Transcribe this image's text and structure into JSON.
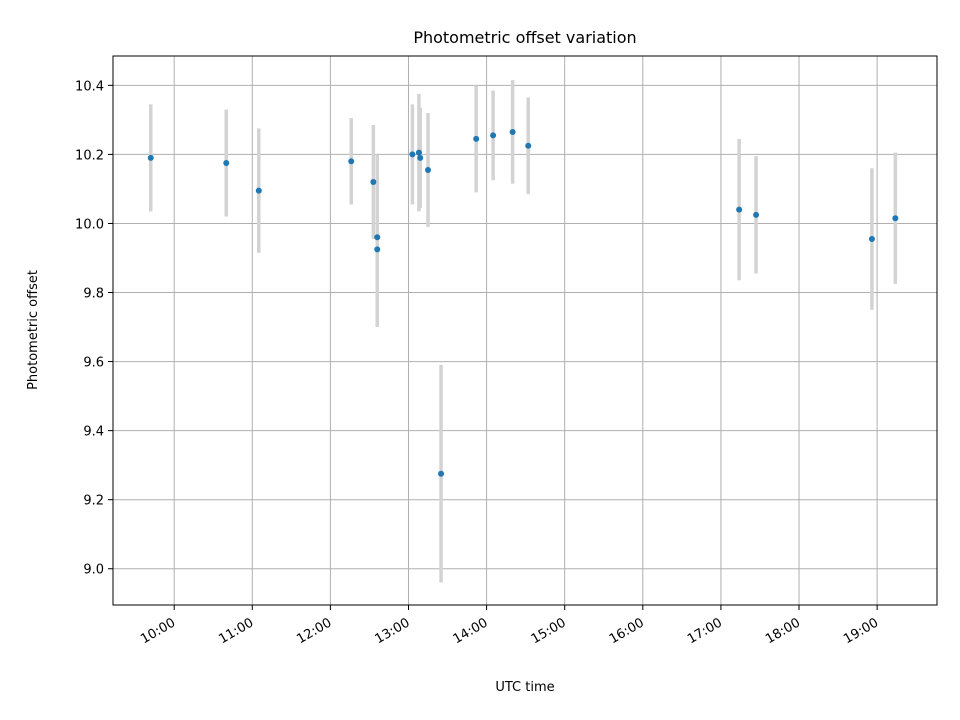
{
  "chart_data": {
    "type": "scatter",
    "title": "Photometric offset variation",
    "xlabel": "UTC time",
    "ylabel": "Photometric offset",
    "x_ticks": [
      "10:00",
      "11:00",
      "12:00",
      "13:00",
      "14:00",
      "15:00",
      "16:00",
      "17:00",
      "18:00",
      "19:00"
    ],
    "xlim": [
      "09:13",
      "19:46"
    ],
    "y_ticks": [
      "9.0",
      "9.2",
      "9.4",
      "9.6",
      "9.8",
      "10.0",
      "10.2",
      "10.4"
    ],
    "ylim": [
      8.895,
      10.485
    ],
    "grid": true,
    "colors": {
      "marker": "#1f77b4",
      "errorbar": "#d3d3d3",
      "grid": "#b0b0b0"
    },
    "series": [
      {
        "points": [
          {
            "x": "09:42",
            "y": 10.19,
            "yerr": 0.155
          },
          {
            "x": "10:40",
            "y": 10.175,
            "yerr": 0.155
          },
          {
            "x": "11:05",
            "y": 10.095,
            "yerr": 0.18
          },
          {
            "x": "12:16",
            "y": 10.18,
            "yerr": 0.125
          },
          {
            "x": "12:33",
            "y": 10.12,
            "yerr": 0.165
          },
          {
            "x": "12:36",
            "y": 9.96,
            "yerr": 0.24
          },
          {
            "x": "12:36",
            "y": 9.925,
            "yerr": 0.225
          },
          {
            "x": "13:03",
            "y": 10.2,
            "yerr": 0.145
          },
          {
            "x": "13:08",
            "y": 10.205,
            "yerr": 0.17
          },
          {
            "x": "13:09",
            "y": 10.19,
            "yerr": 0.145
          },
          {
            "x": "13:15",
            "y": 10.155,
            "yerr": 0.165
          },
          {
            "x": "13:25",
            "y": 9.275,
            "yerr": 0.315
          },
          {
            "x": "13:52",
            "y": 10.245,
            "yerr": 0.155
          },
          {
            "x": "14:05",
            "y": 10.255,
            "yerr": 0.13
          },
          {
            "x": "14:20",
            "y": 10.265,
            "yerr": 0.15
          },
          {
            "x": "14:32",
            "y": 10.225,
            "yerr": 0.14
          },
          {
            "x": "17:14",
            "y": 10.04,
            "yerr": 0.205
          },
          {
            "x": "17:27",
            "y": 10.025,
            "yerr": 0.17
          },
          {
            "x": "18:56",
            "y": 9.955,
            "yerr": 0.205
          },
          {
            "x": "19:14",
            "y": 10.015,
            "yerr": 0.19
          }
        ]
      }
    ]
  }
}
